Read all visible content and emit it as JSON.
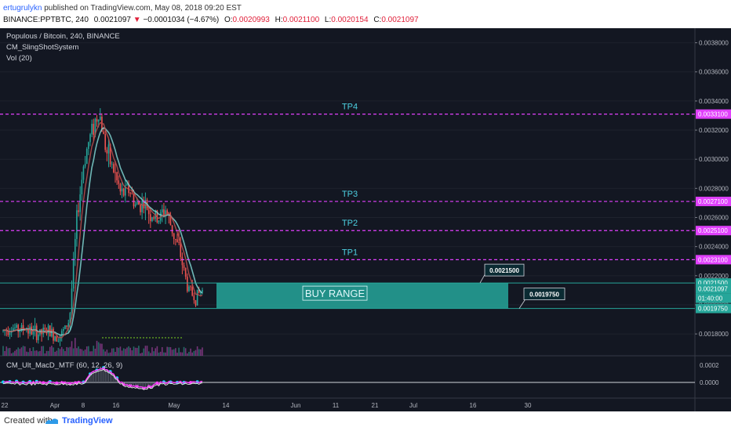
{
  "header": {
    "author": "ertugrulykn",
    "published": "published on TradingView.com, May 08, 2018 09:20 EST",
    "symbol": "BINANCE:PPTBTC, 240",
    "last": "0.0021097",
    "change": "−0.0001034 (−4.67%)",
    "open_label": "O:",
    "open": "0.0020993",
    "high_label": "H:",
    "high": "0.0021100",
    "low_label": "L:",
    "low": "0.0020154",
    "close_label": "C:",
    "close": "0.0021097"
  },
  "legend": {
    "title": "Populous / Bitcoin, 240, BINANCE",
    "indicator1": "CM_SlingShotSystem",
    "indicator2": "Vol (20)",
    "indicator3": "CM_Ult_MacD_MTF (60, 12, 26, 9)"
  },
  "annotations": {
    "tp4": "TP4",
    "tp3": "TP3",
    "tp2": "TP2",
    "tp1": "TP1",
    "buy_range": "BUY RANGE",
    "callout_top": "0.0021500",
    "callout_bottom": "0.0019750"
  },
  "price_axis": {
    "ticks": [
      "0.0038000",
      "0.0036000",
      "0.0034000",
      "0.0032000",
      "0.0030000",
      "0.0028000",
      "0.0026000",
      "0.0024000",
      "0.0022000",
      "0.0020000",
      "0.0018000"
    ],
    "badges": [
      "0.0033100",
      "0.0027100",
      "0.0025100",
      "0.0023100",
      "0.0021500",
      "0.0021097",
      "01:40:00",
      "0.0019750"
    ],
    "macd_ticks": [
      "0.0002",
      "0.0000"
    ]
  },
  "time_axis": {
    "ticks": [
      "22",
      "Apr",
      "8",
      "16",
      "May",
      "14",
      "Jun",
      "11",
      "21",
      "Jul",
      "16",
      "30"
    ]
  },
  "footer": {
    "created_with": "Created with",
    "brand": "TradingView"
  },
  "colors": {
    "background": "#131722",
    "target_line": "#e040fb",
    "buy_box": "#26a69a",
    "label_text": "#4dd0e1",
    "bull": "#26a69a",
    "bear": "#ef5350"
  },
  "chart_data": {
    "type": "line",
    "title": "Populous / Bitcoin, 240, BINANCE",
    "target_levels": [
      {
        "name": "TP4",
        "value": 0.00331
      },
      {
        "name": "TP3",
        "value": 0.00271
      },
      {
        "name": "TP2",
        "value": 0.00251
      },
      {
        "name": "TP1",
        "value": 0.00231
      }
    ],
    "buy_range": [
      0.001975,
      0.00215
    ],
    "ylim": [
      0.00165,
      0.0039
    ],
    "last_price": 0.0021097,
    "price_path": [
      0.00182,
      0.00185,
      0.00183,
      0.00184,
      0.00181,
      0.0018,
      0.00182,
      0.00179,
      0.0018,
      0.0019,
      0.0026,
      0.003,
      0.0032,
      0.00333,
      0.00305,
      0.00292,
      0.00275,
      0.0028,
      0.00268,
      0.0027,
      0.00262,
      0.00258,
      0.00266,
      0.0025,
      0.00235,
      0.00212,
      0.00205,
      0.0021
    ]
  }
}
